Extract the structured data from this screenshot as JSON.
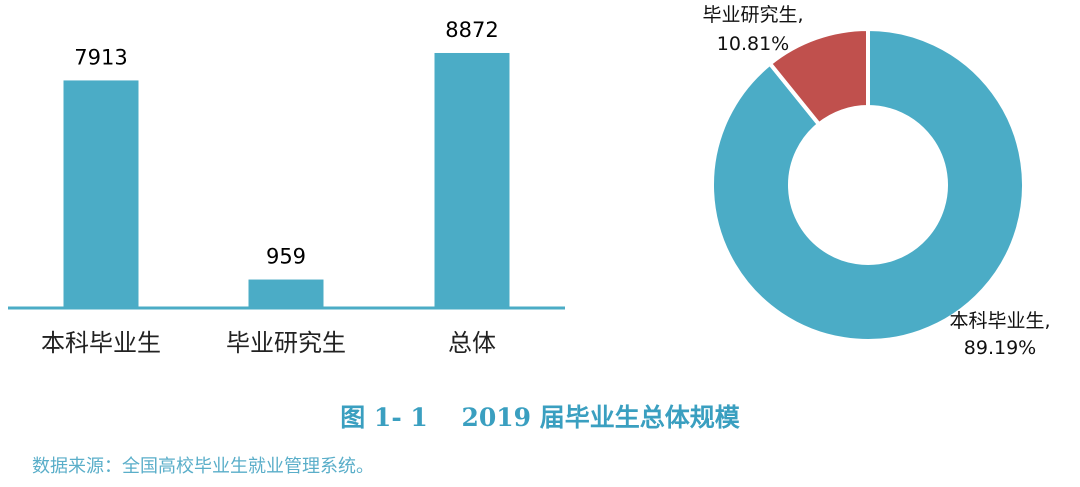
{
  "caption": "图 1- 1　 2019 届毕业生总体规模",
  "source": "数据来源：全国高校毕业生就业管理系统。",
  "colors": {
    "bar": "#4bacc6",
    "graduate_slice": "#c0504d",
    "caption": "#3a9fc0"
  },
  "chart_data": [
    {
      "type": "bar",
      "categories": [
        "本科毕业生",
        "毕业研究生",
        "总体"
      ],
      "values": [
        7913,
        959,
        8872
      ],
      "data_labels": [
        "7913",
        "959",
        "8872"
      ],
      "ylim": [
        0,
        9500
      ],
      "grid": false,
      "legend": "none"
    },
    {
      "type": "pie",
      "donut": true,
      "labels": [
        "本科毕业生,",
        "毕业研究生,"
      ],
      "values": [
        89.19,
        10.81
      ],
      "data_labels": [
        "89.19%",
        "10.81%"
      ],
      "legend": "none"
    }
  ]
}
